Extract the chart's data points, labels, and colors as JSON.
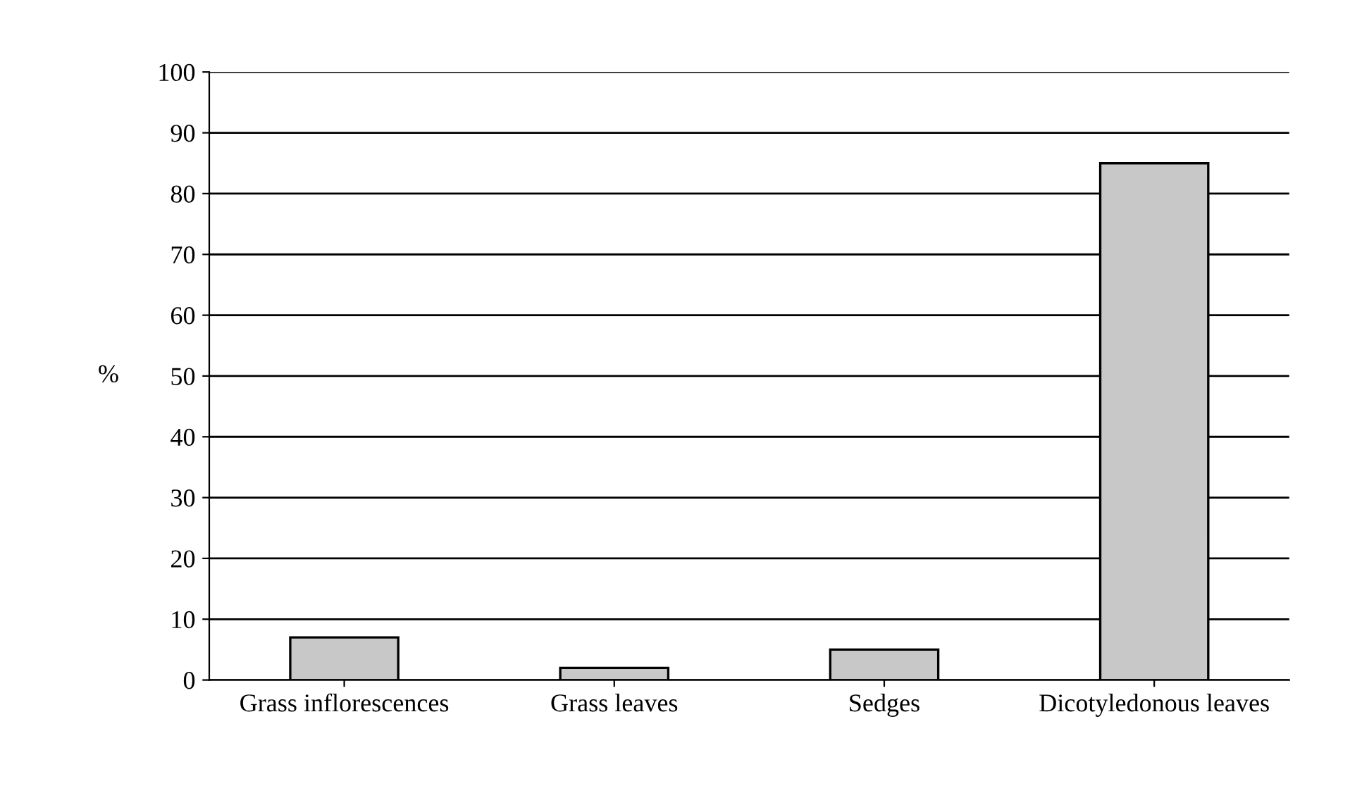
{
  "chart_data": {
    "type": "bar",
    "categories": [
      "Grass inflorescences",
      "Grass leaves",
      "Sedges",
      "Dicotyledonous leaves"
    ],
    "values": [
      7,
      2,
      5,
      85
    ],
    "color": "#c8c8c8",
    "ylabel": "%",
    "ylim": [
      0,
      100
    ],
    "yticks": [
      0,
      10,
      20,
      30,
      40,
      50,
      60,
      70,
      80,
      90,
      100
    ],
    "grid": "y"
  }
}
